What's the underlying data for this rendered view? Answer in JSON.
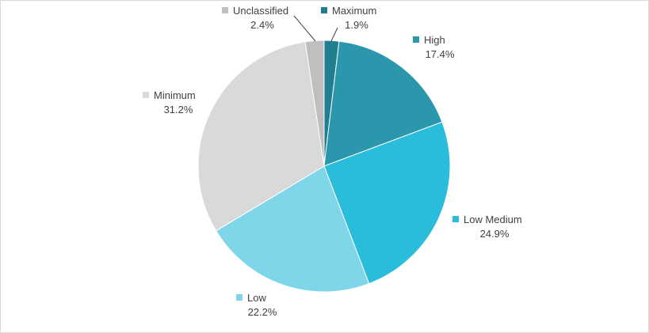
{
  "chart_data": {
    "type": "pie",
    "title": "",
    "slices": [
      {
        "name": "Maximum",
        "value": 1.9,
        "label": "1.9%",
        "color": "#1f7f8f"
      },
      {
        "name": "High",
        "value": 17.4,
        "label": "17.4%",
        "color": "#2a97ad"
      },
      {
        "name": "Low Medium",
        "value": 24.9,
        "label": "24.9%",
        "color": "#29bcdb"
      },
      {
        "name": "Low",
        "value": 22.2,
        "label": "22.2%",
        "color": "#7fd6e9"
      },
      {
        "name": "Minimum",
        "value": 31.2,
        "label": "31.2%",
        "color": "#d9d9d9"
      },
      {
        "name": "Unclassified",
        "value": 2.4,
        "label": "2.4%",
        "color": "#bfbfbf"
      }
    ],
    "start_angle": "12 o'clock",
    "direction": "clockwise",
    "legend": "data labels with color key next to each slice"
  }
}
